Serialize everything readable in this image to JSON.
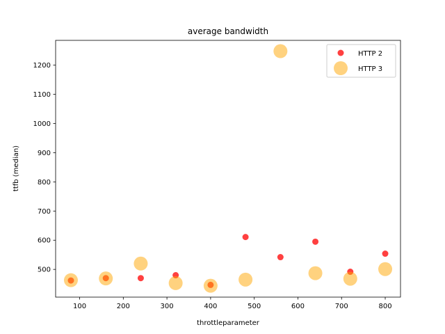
{
  "chart_data": {
    "type": "scatter",
    "title": "average bandwidth",
    "xlabel": "throttleparameter",
    "ylabel": "ttfb (median)",
    "xlim": [
      45,
      835
    ],
    "ylim": [
      405,
      1285
    ],
    "xticks": [
      100,
      200,
      300,
      400,
      500,
      600,
      700,
      800
    ],
    "yticks": [
      500,
      600,
      700,
      800,
      900,
      1000,
      1100,
      1200
    ],
    "grid": false,
    "legend_position": "top-right",
    "series": [
      {
        "name": "HTTP 2",
        "color": "#ff0000",
        "x": [
          80,
          160,
          240,
          320,
          400,
          480,
          560,
          640,
          720,
          800
        ],
        "y": [
          462,
          470,
          470,
          480,
          447,
          611,
          542,
          595,
          492,
          554
        ]
      },
      {
        "name": "HTTP 3",
        "color": "#ffa500",
        "x": [
          80,
          160,
          240,
          320,
          400,
          480,
          560,
          640,
          720,
          800
        ],
        "y": [
          463,
          469,
          520,
          453,
          444,
          465,
          1248,
          487,
          468,
          501
        ]
      }
    ]
  }
}
